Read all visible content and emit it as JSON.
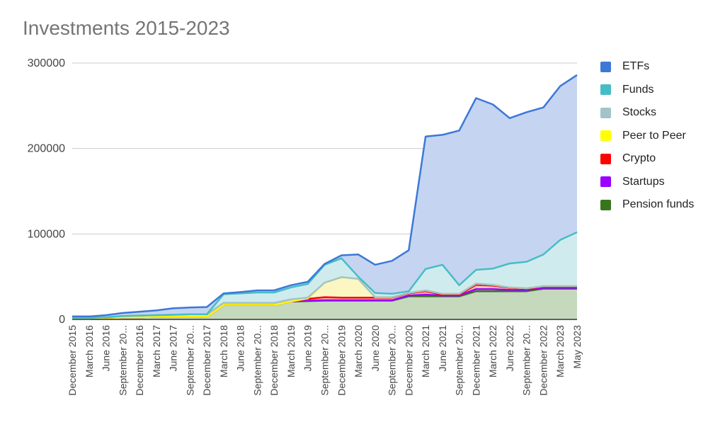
{
  "chart_data": {
    "type": "area",
    "stacked": true,
    "title": "Investments 2015-2023",
    "xlabel": "",
    "ylabel": "",
    "ylim": [
      0,
      300000
    ],
    "yticks": [
      "0",
      "100000",
      "200000",
      "300000"
    ],
    "grid": true,
    "legend_position": "right",
    "categories": [
      "December 2015",
      "March 2016",
      "June 2016",
      "September 20...",
      "December 2016",
      "March 2017",
      "June 2017",
      "September 20...",
      "December 2017",
      "March 2018",
      "June 2018",
      "September 20...",
      "December 2018",
      "March 2019",
      "June 2019",
      "September 20...",
      "December 2019",
      "March 2020",
      "June 2020",
      "September 20...",
      "December 2020",
      "March 2021",
      "June 2021",
      "September 20...",
      "December 2021",
      "March 2022",
      "June 2022",
      "September 20...",
      "December 2022",
      "March 2023",
      "May 2023"
    ],
    "series": [
      {
        "name": "Pension funds",
        "color": "#38761d",
        "fill": "#c5d9bd",
        "values": [
          1500,
          1500,
          2000,
          2500,
          2500,
          3000,
          3000,
          3000,
          3000,
          17000,
          17000,
          17000,
          17000,
          21000,
          21500,
          22000,
          22000,
          22000,
          22000,
          22000,
          27000,
          27000,
          27000,
          27000,
          33000,
          33000,
          33000,
          33000,
          36000,
          36000,
          36000
        ]
      },
      {
        "name": "Startups",
        "color": "#9900ff",
        "fill": "#e3c2f7",
        "values": [
          0,
          0,
          0,
          0,
          0,
          0,
          0,
          0,
          0,
          0,
          0,
          0,
          0,
          0,
          500,
          500,
          500,
          500,
          500,
          500,
          1000,
          2000,
          1000,
          1000,
          2500,
          2500,
          1500,
          1500,
          1000,
          1000,
          1000
        ]
      },
      {
        "name": "Crypto",
        "color": "#ff0000",
        "fill": "#f8c0c0",
        "values": [
          0,
          0,
          0,
          0,
          0,
          0,
          0,
          0,
          0,
          0,
          0,
          0,
          0,
          0,
          2000,
          3500,
          3000,
          3000,
          3000,
          3000,
          2500,
          4000,
          1000,
          1000,
          5000,
          4000,
          2500,
          1500,
          1500,
          1500,
          1500
        ]
      },
      {
        "name": "Peer to Peer",
        "color": "#ffff00",
        "fill": "#fbf6c2",
        "values": [
          0,
          0,
          0,
          0,
          0,
          0,
          0,
          0,
          0,
          0,
          0,
          0,
          0,
          0,
          500,
          17000,
          24000,
          22000,
          500,
          500,
          500,
          1000,
          1000,
          1000,
          1500,
          1000,
          500,
          500,
          500,
          500,
          500
        ]
      },
      {
        "name": "Stocks",
        "color": "#a2c4c9",
        "fill": "#e3ebed",
        "values": [
          500,
          500,
          500,
          1500,
          2000,
          2000,
          2500,
          3000,
          3000,
          2500,
          2500,
          2500,
          2500,
          2500,
          1000,
          0,
          0,
          0,
          0,
          0,
          0,
          0,
          0,
          0,
          0,
          0,
          0,
          0,
          0,
          0,
          0
        ]
      },
      {
        "name": "Funds",
        "color": "#46bdc6",
        "fill": "#d0ebee",
        "values": [
          0,
          0,
          0,
          0,
          0,
          0,
          0,
          0,
          0,
          10000,
          11000,
          12000,
          12000,
          14000,
          16000,
          21000,
          22000,
          2500,
          5000,
          4000,
          2000,
          25000,
          34000,
          10000,
          16000,
          19000,
          28000,
          31000,
          37000,
          54000,
          63000
        ]
      },
      {
        "name": "ETFs",
        "color": "#3c78d8",
        "fill": "#c5d5f1",
        "values": [
          1500,
          1500,
          2500,
          3500,
          4500,
          5500,
          7500,
          8000,
          8500,
          1000,
          1500,
          2500,
          2500,
          2500,
          2500,
          1000,
          3500,
          26000,
          33000,
          38500,
          48000,
          155000,
          152000,
          181000,
          201000,
          192000,
          170000,
          175000,
          172000,
          180000,
          184000
        ]
      }
    ]
  }
}
